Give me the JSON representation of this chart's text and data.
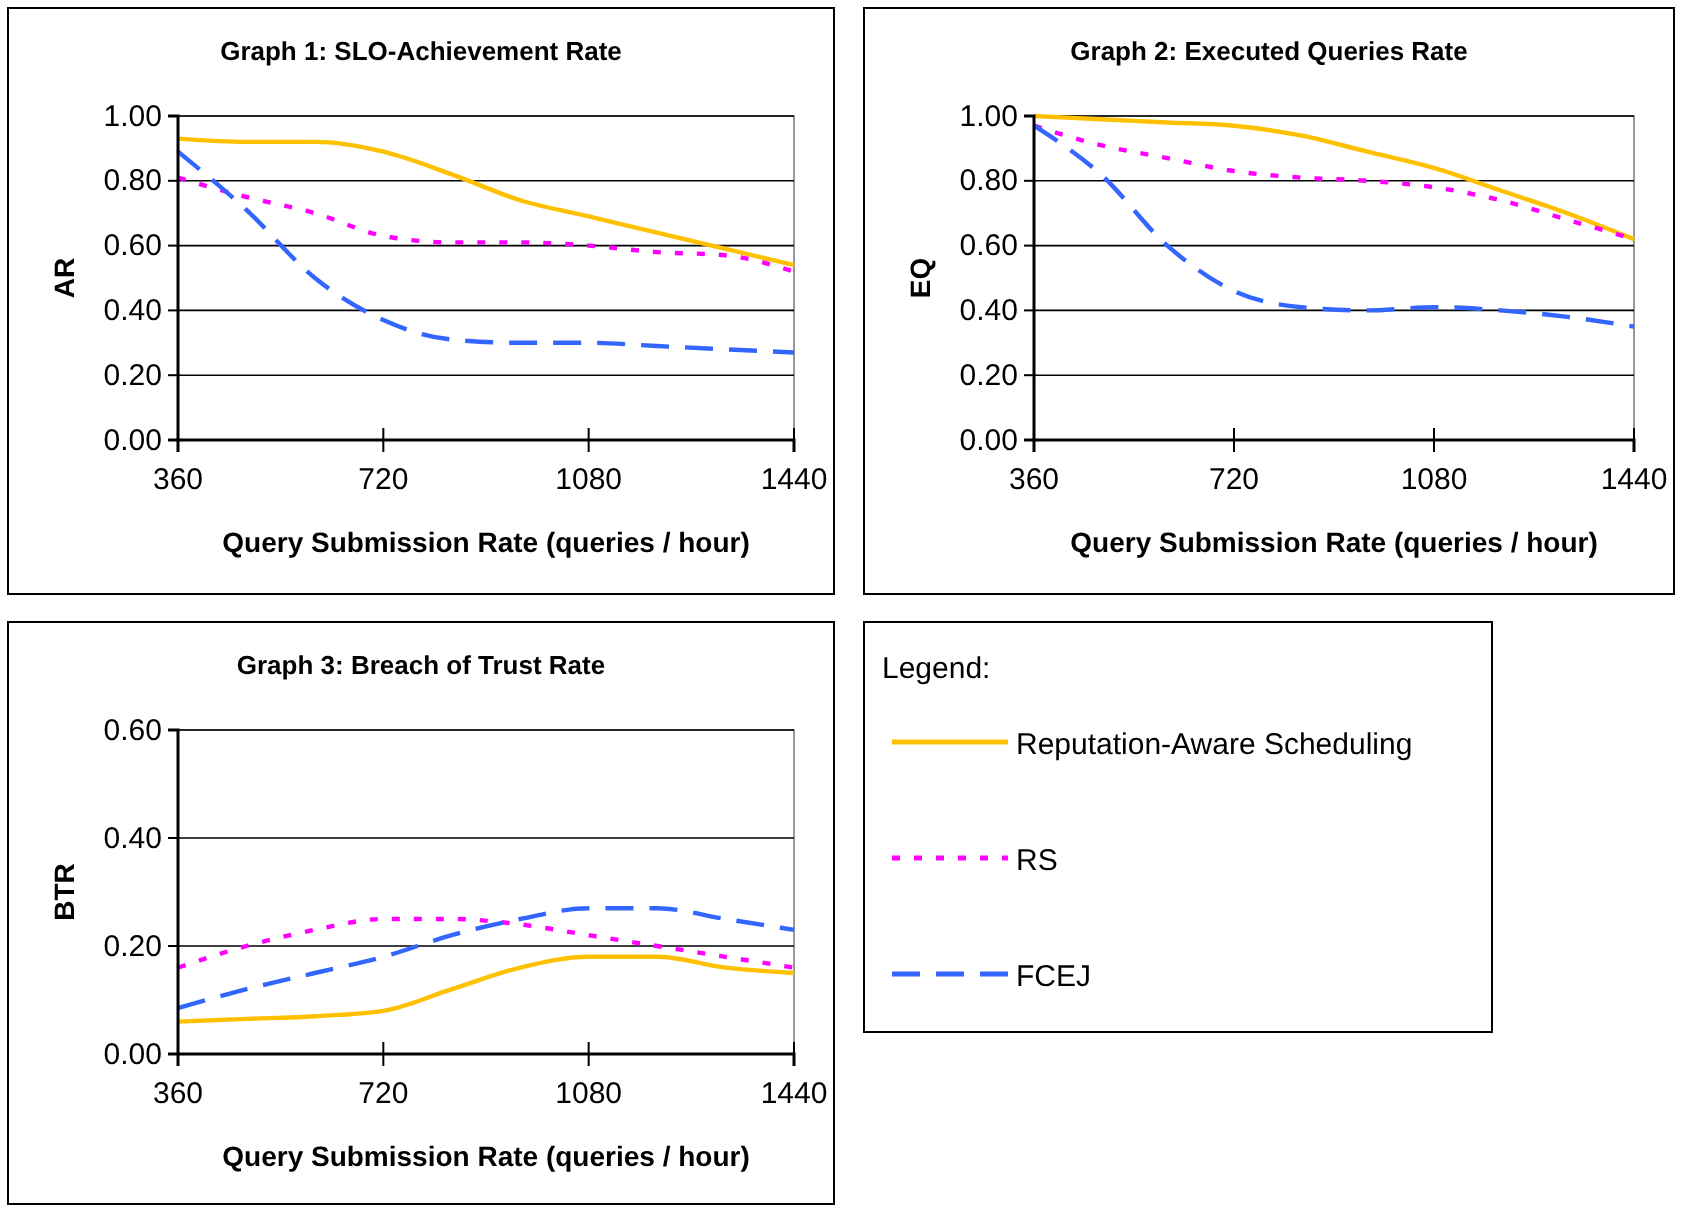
{
  "chart_data": [
    {
      "type": "line",
      "title": "Graph 1: SLO-Achievement Rate",
      "xlabel": "Query Submission Rate (queries / hour)",
      "ylabel": "AR",
      "x": [
        360,
        480,
        600,
        720,
        840,
        960,
        1080,
        1200,
        1320,
        1440
      ],
      "xlim": [
        360,
        1440
      ],
      "xticks": [
        360,
        720,
        1080,
        1440
      ],
      "ylim": [
        0,
        1
      ],
      "yticks": [
        {
          "value": 0,
          "label": "0.00"
        },
        {
          "value": 0.2,
          "label": "0.20"
        },
        {
          "value": 0.4,
          "label": "0.40"
        },
        {
          "value": 0.6,
          "label": "0.60"
        },
        {
          "value": 0.8,
          "label": "0.80"
        },
        {
          "value": 1,
          "label": "1.00"
        }
      ],
      "grid": "y",
      "legend": false,
      "series": [
        {
          "color": "#ffc000",
          "line_style": "solid",
          "values": [
            0.93,
            0.92,
            0.92,
            0.89,
            0.82,
            0.74,
            0.69,
            0.64,
            0.59,
            0.54
          ]
        },
        {
          "color": "#ff00ff",
          "line_style": "dotted",
          "values": [
            0.81,
            0.75,
            0.7,
            0.63,
            0.61,
            0.61,
            0.6,
            0.58,
            0.57,
            0.52
          ]
        },
        {
          "color": "#3366ff",
          "line_style": "dashed",
          "values": [
            0.89,
            0.71,
            0.5,
            0.37,
            0.31,
            0.3,
            0.3,
            0.29,
            0.28,
            0.27
          ]
        }
      ]
    },
    {
      "type": "line",
      "title": "Graph 2: Executed Queries Rate",
      "xlabel": "Query Submission Rate (queries / hour)",
      "ylabel": "EQ",
      "x": [
        360,
        480,
        600,
        720,
        840,
        960,
        1080,
        1200,
        1320,
        1440
      ],
      "xlim": [
        360,
        1440
      ],
      "xticks": [
        360,
        720,
        1080,
        1440
      ],
      "ylim": [
        0,
        1
      ],
      "yticks": [
        {
          "value": 0,
          "label": "0.00"
        },
        {
          "value": 0.2,
          "label": "0.20"
        },
        {
          "value": 0.4,
          "label": "0.40"
        },
        {
          "value": 0.6,
          "label": "0.60"
        },
        {
          "value": 0.8,
          "label": "0.80"
        },
        {
          "value": 1,
          "label": "1.00"
        }
      ],
      "grid": "y",
      "legend": false,
      "series": [
        {
          "color": "#ffc000",
          "line_style": "solid",
          "values": [
            1.0,
            0.99,
            0.98,
            0.97,
            0.94,
            0.89,
            0.84,
            0.77,
            0.7,
            0.62
          ]
        },
        {
          "color": "#ff00ff",
          "line_style": "dotted",
          "values": [
            0.97,
            0.91,
            0.87,
            0.83,
            0.81,
            0.8,
            0.78,
            0.74,
            0.68,
            0.62
          ]
        },
        {
          "color": "#3366ff",
          "line_style": "dashed",
          "values": [
            0.97,
            0.82,
            0.6,
            0.46,
            0.41,
            0.4,
            0.41,
            0.4,
            0.38,
            0.35
          ]
        }
      ]
    },
    {
      "type": "line",
      "title": "Graph 3: Breach of Trust Rate",
      "xlabel": "Query Submission Rate (queries / hour)",
      "ylabel": "BTR",
      "legend_title": "Legend:",
      "x": [
        360,
        480,
        600,
        720,
        840,
        960,
        1080,
        1200,
        1320,
        1440
      ],
      "xlim": [
        360,
        1440
      ],
      "xticks": [
        360,
        720,
        1080,
        1440
      ],
      "ylim": [
        0,
        0.6
      ],
      "yticks": [
        {
          "value": 0,
          "label": "0.00"
        },
        {
          "value": 0.2,
          "label": "0.20"
        },
        {
          "value": 0.4,
          "label": "0.40"
        },
        {
          "value": 0.6,
          "label": "0.60"
        }
      ],
      "grid": "y",
      "legend": "right",
      "series": [
        {
          "name": "Reputation-Aware Scheduling",
          "color": "#ffc000",
          "line_style": "solid",
          "values": [
            0.06,
            0.065,
            0.07,
            0.08,
            0.12,
            0.16,
            0.18,
            0.18,
            0.16,
            0.15
          ]
        },
        {
          "name": "RS",
          "color": "#ff00ff",
          "line_style": "dotted",
          "values": [
            0.16,
            0.2,
            0.23,
            0.25,
            0.25,
            0.24,
            0.22,
            0.2,
            0.18,
            0.16
          ]
        },
        {
          "name": "FCEJ",
          "color": "#3366ff",
          "line_style": "dashed",
          "values": [
            0.085,
            0.12,
            0.15,
            0.18,
            0.22,
            0.25,
            0.27,
            0.27,
            0.25,
            0.23
          ]
        }
      ]
    }
  ]
}
